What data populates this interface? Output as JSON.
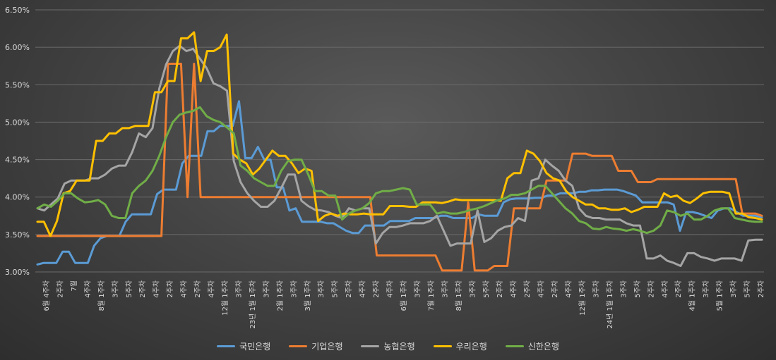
{
  "chart_data": {
    "type": "line",
    "title": "",
    "xlabel": "",
    "ylabel": "",
    "ylim": [
      3.0,
      6.5
    ],
    "yticks": [
      "3.00%",
      "3.50%",
      "4.00%",
      "4.50%",
      "5.00%",
      "5.50%",
      "6.00%",
      "6.50%"
    ],
    "grid": true,
    "legend_position": "bottom",
    "colors": {
      "국민은행": "#5b9bd5",
      "기업은행": "#ed7d31",
      "농협은행": "#a5a5a5",
      "우리은행": "#ffc000",
      "신한은행": "#70ad47"
    },
    "x_labels": [
      "6월 4주차",
      "2주차",
      "7월",
      "4주차",
      "8월 1주차",
      "3주차",
      "5주차",
      "2주차",
      "4주차",
      "2주차",
      "4주차",
      "2주차",
      "4주차",
      "12월 1주차",
      "3주차",
      "23년 1월 1주차",
      "3주차",
      "2월 1주차",
      "3주차",
      "3월 1주차",
      "3주차",
      "5주차",
      "2주차",
      "4주차",
      "2주차",
      "4주차",
      "6월 1주차",
      "3주차",
      "7월 1주차",
      "3주차",
      "8월 1주차",
      "3주차",
      "5주차",
      "2주차",
      "4주차",
      "2주차",
      "4주차",
      "2주차",
      "4주차",
      "12월 1주차",
      "3주차",
      "24년 1월 1주차",
      "3주차",
      "5주차",
      "2주차",
      "4주차",
      "2주차",
      "4월 1주차",
      "3주차",
      "5월 1주차",
      "3주차",
      "5주차",
      "2주차"
    ],
    "series": [
      {
        "name": "국민은행",
        "values": [
          3.1,
          3.12,
          3.12,
          3.12,
          3.27,
          3.27,
          3.12,
          3.12,
          3.12,
          3.35,
          3.45,
          3.48,
          3.48,
          3.48,
          3.67,
          3.77,
          3.77,
          3.77,
          3.77,
          4.04,
          4.1,
          4.1,
          4.1,
          4.45,
          4.55,
          4.55,
          4.55,
          4.88,
          4.88,
          4.95,
          4.95,
          4.95,
          5.28,
          4.52,
          4.52,
          4.67,
          4.5,
          4.5,
          4.13,
          4.13,
          3.82,
          3.85,
          3.67,
          3.67,
          3.67,
          3.67,
          3.65,
          3.65,
          3.6,
          3.55,
          3.52,
          3.52,
          3.62,
          3.62,
          3.62,
          3.62,
          3.68,
          3.68,
          3.68,
          3.68,
          3.72,
          3.72,
          3.72,
          3.72,
          3.75,
          3.75,
          3.72,
          3.72,
          3.72,
          3.72,
          3.77,
          3.75,
          3.75,
          3.75,
          3.93,
          3.97,
          3.98,
          3.98,
          3.98,
          3.99,
          3.99,
          4.02,
          4.02,
          4.05,
          4.05,
          4.05,
          4.07,
          4.07,
          4.09,
          4.09,
          4.1,
          4.1,
          4.1,
          4.08,
          4.05,
          4.02,
          3.93,
          3.93,
          3.93,
          3.93,
          3.93,
          3.9,
          3.55,
          3.8,
          3.8,
          3.78,
          3.75,
          3.72,
          3.82,
          3.85,
          3.85,
          3.8,
          3.75,
          3.75,
          3.75,
          3.73
        ]
      },
      {
        "name": "기업은행",
        "values": [
          3.48,
          3.48,
          3.48,
          3.48,
          3.48,
          3.48,
          3.48,
          3.48,
          3.48,
          3.48,
          3.48,
          3.48,
          3.48,
          3.48,
          3.48,
          3.48,
          3.48,
          3.48,
          3.48,
          3.48,
          5.78,
          5.78,
          5.78,
          4.0,
          5.78,
          4.0,
          4.0,
          4.0,
          4.0,
          4.0,
          4.0,
          4.0,
          4.0,
          4.0,
          4.0,
          4.0,
          4.0,
          4.0,
          4.0,
          4.0,
          4.0,
          4.0,
          4.0,
          4.0,
          4.0,
          4.0,
          4.0,
          4.0,
          4.0,
          4.0,
          4.0,
          4.0,
          3.22,
          3.22,
          3.22,
          3.22,
          3.22,
          3.22,
          3.22,
          3.22,
          3.22,
          3.22,
          3.02,
          3.02,
          3.02,
          3.02,
          3.93,
          3.02,
          3.02,
          3.02,
          3.08,
          3.08,
          3.08,
          3.85,
          3.85,
          3.85,
          3.85,
          3.85,
          4.22,
          4.22,
          4.22,
          4.22,
          4.58,
          4.58,
          4.58,
          4.55,
          4.55,
          4.55,
          4.55,
          4.35,
          4.35,
          4.35,
          4.2,
          4.2,
          4.2,
          4.24,
          4.24,
          4.24,
          4.24,
          4.24,
          4.24,
          4.24,
          4.24,
          4.24,
          4.24,
          4.24,
          4.24,
          4.24,
          3.78,
          3.78,
          3.78,
          3.75
        ]
      },
      {
        "name": "농협은행",
        "values": [
          3.85,
          3.82,
          3.9,
          3.98,
          4.18,
          4.22,
          4.22,
          4.22,
          4.25,
          4.25,
          4.3,
          4.38,
          4.42,
          4.42,
          4.6,
          4.85,
          4.8,
          4.92,
          5.45,
          5.77,
          5.95,
          6.02,
          5.95,
          5.98,
          5.85,
          5.72,
          5.52,
          5.48,
          5.42,
          4.48,
          4.2,
          4.05,
          3.95,
          3.87,
          3.87,
          3.95,
          4.12,
          4.3,
          4.3,
          3.95,
          3.88,
          3.83,
          3.82,
          3.8,
          3.75,
          3.72,
          3.85,
          3.82,
          3.85,
          3.85,
          3.38,
          3.52,
          3.6,
          3.6,
          3.62,
          3.65,
          3.65,
          3.65,
          3.68,
          3.75,
          3.55,
          3.35,
          3.38,
          3.38,
          3.38,
          3.82,
          3.4,
          3.45,
          3.55,
          3.6,
          3.62,
          3.72,
          3.68,
          4.22,
          4.25,
          4.5,
          4.42,
          4.35,
          4.22,
          4.15,
          3.85,
          3.75,
          3.72,
          3.72,
          3.7,
          3.7,
          3.7,
          3.65,
          3.62,
          3.62,
          3.18,
          3.18,
          3.22,
          3.15,
          3.12,
          3.08,
          3.25,
          3.25,
          3.2,
          3.18,
          3.15,
          3.18,
          3.18,
          3.18,
          3.15,
          3.42,
          3.43,
          3.43
        ]
      },
      {
        "name": "우리은행",
        "values": [
          3.67,
          3.67,
          3.48,
          3.68,
          4.05,
          4.08,
          4.22,
          4.22,
          4.22,
          4.75,
          4.75,
          4.85,
          4.85,
          4.92,
          4.92,
          4.95,
          4.95,
          4.95,
          5.4,
          5.4,
          5.55,
          5.55,
          6.12,
          6.12,
          6.2,
          5.55,
          5.95,
          5.95,
          6.0,
          6.17,
          4.58,
          4.5,
          4.45,
          4.3,
          4.38,
          4.5,
          4.62,
          4.55,
          4.55,
          4.45,
          4.32,
          4.38,
          4.35,
          3.68,
          3.75,
          3.78,
          3.75,
          3.78,
          3.77,
          3.77,
          3.78,
          3.77,
          3.77,
          3.77,
          3.88,
          3.88,
          3.88,
          3.87,
          3.87,
          3.93,
          3.93,
          3.93,
          3.92,
          3.94,
          3.97,
          3.96,
          3.96,
          3.96,
          3.96,
          3.96,
          3.96,
          3.95,
          4.25,
          4.32,
          4.32,
          4.62,
          4.58,
          4.48,
          4.32,
          4.25,
          4.22,
          4.08,
          4.0,
          3.95,
          3.9,
          3.9,
          3.85,
          3.85,
          3.83,
          3.83,
          3.85,
          3.8,
          3.83,
          3.87,
          3.87,
          3.87,
          4.05,
          4.0,
          4.02,
          3.95,
          3.92,
          3.98,
          4.05,
          4.07,
          4.07,
          4.07,
          4.05,
          3.78,
          3.78,
          3.73,
          3.72,
          3.7
        ]
      },
      {
        "name": "신한은행",
        "values": [
          3.85,
          3.9,
          3.87,
          3.95,
          4.05,
          4.05,
          3.98,
          3.93,
          3.94,
          3.96,
          3.9,
          3.75,
          3.72,
          3.72,
          4.05,
          4.15,
          4.22,
          4.35,
          4.55,
          4.8,
          5.0,
          5.1,
          5.13,
          5.15,
          5.2,
          5.08,
          5.03,
          5.0,
          4.93,
          4.85,
          4.42,
          4.35,
          4.25,
          4.2,
          4.15,
          4.15,
          4.35,
          4.48,
          4.5,
          4.5,
          4.3,
          4.08,
          4.08,
          4.02,
          4.02,
          3.7,
          3.78,
          3.82,
          3.85,
          3.92,
          4.05,
          4.08,
          4.08,
          4.1,
          4.12,
          4.1,
          3.9,
          3.9,
          3.9,
          3.78,
          3.8,
          3.78,
          3.78,
          3.8,
          3.83,
          3.85,
          3.88,
          3.92,
          3.96,
          3.98,
          4.03,
          4.03,
          4.05,
          4.1,
          4.15,
          4.15,
          4.05,
          3.95,
          3.85,
          3.78,
          3.68,
          3.65,
          3.58,
          3.57,
          3.6,
          3.58,
          3.57,
          3.55,
          3.57,
          3.55,
          3.52,
          3.55,
          3.62,
          3.82,
          3.8,
          3.75,
          3.78,
          3.7,
          3.7,
          3.75,
          3.82,
          3.85,
          3.85,
          3.72,
          3.7,
          3.68,
          3.67,
          3.67
        ]
      }
    ]
  }
}
